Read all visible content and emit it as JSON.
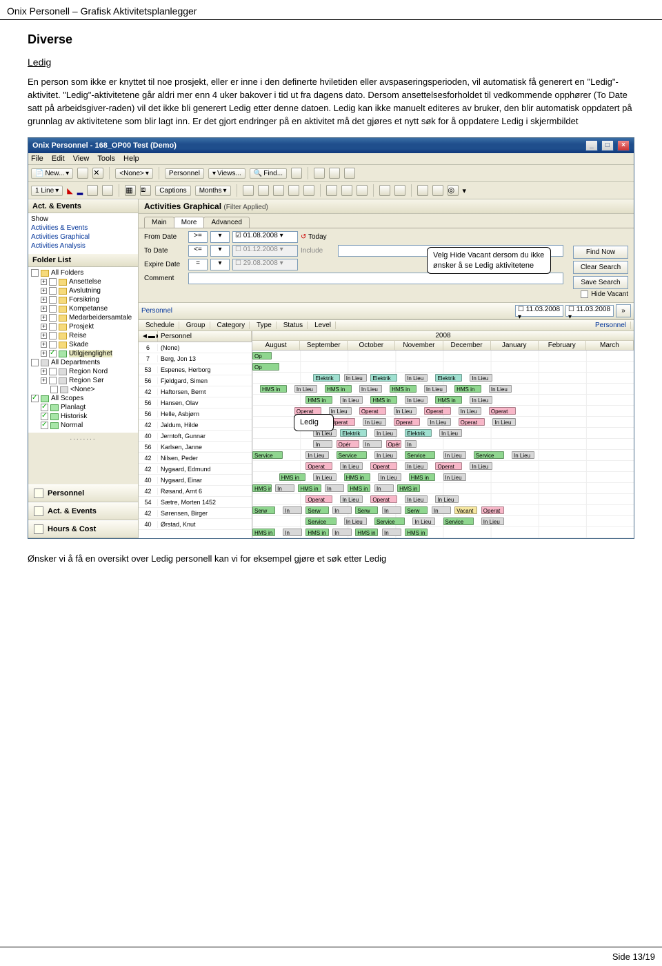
{
  "page": {
    "header": "Onix Personell – Grafisk Aktivitetsplanlegger",
    "footer": "Side 13/19",
    "section_title": "Diverse",
    "subheading": "Ledig",
    "para1": "En person som ikke er knyttet til noe prosjekt, eller er inne i den definerte hviletiden eller avspaseringsperioden, vil automatisk få generert en \"Ledig\"-aktivitet. \"Ledig\"-aktivitetene går aldri mer enn 4 uker bakover i tid ut fra dagens dato. Dersom ansettelsesforholdet til vedkommende opphører (To Date satt på arbeidsgiver-raden) vil det ikke bli generert Ledig etter denne datoen. Ledig kan ikke manuelt editeres av bruker, den blir automatisk oppdatert på grunnlag av aktivitetene som blir lagt inn. Er det gjort endringer på en aktivitet må det gjøres et nytt søk for å oppdatere Ledig i skjermbildet",
    "para_after": "Ønsker vi å få en oversikt over Ledig personell kan vi for eksempel gjøre et søk etter Ledig"
  },
  "app": {
    "title": "Onix Personnel - 168_OP00 Test (Demo)",
    "menu": {
      "file": "File",
      "edit": "Edit",
      "view": "View",
      "tools": "Tools",
      "help": "Help"
    },
    "toolbar": {
      "new": "New...",
      "none": "<None>",
      "personnel": "Personnel",
      "views": "Views...",
      "find": "Find..."
    },
    "toolbar2": {
      "line": "1 Line",
      "captions": "Captions",
      "months": "Months"
    },
    "actevents": {
      "header": "Act. & Events",
      "show": "Show",
      "items": [
        "Activities & Events",
        "Activities Graphical",
        "Activities Analysis"
      ]
    },
    "folderlist": {
      "header": "Folder List",
      "all_folders": "All Folders",
      "folders": [
        "Ansettelse",
        "Avslutning",
        "Forsikring",
        "Kompetanse",
        "Medarbeidersamtale",
        "Prosjekt",
        "Reise",
        "Skade",
        "Utilgjenglighet"
      ],
      "all_departments": "All Departments",
      "dept": [
        "Region Nord",
        "Region Sør",
        "<None>"
      ],
      "all_scopes": "All Scopes",
      "scopes": [
        "Planlagt",
        "Historisk",
        "Normal"
      ]
    },
    "nav": {
      "personnel": "Personnel",
      "actevents": "Act. & Events",
      "hourscost": "Hours & Cost"
    },
    "main": {
      "title": "Activities Graphical",
      "filter_applied": "(Filter Applied)",
      "tabs": {
        "main": "Main",
        "more": "More",
        "advanced": "Advanced"
      },
      "filters": {
        "from_date": "From Date",
        "from_op": ">=",
        "from_val": "01.08.2008",
        "to_date": "To Date",
        "to_op": "<=",
        "to_val": "01.12.2008",
        "expire_date": "Expire Date",
        "exp_op": "=",
        "exp_val": "29.08.2008",
        "comment": "Comment",
        "today": "Today",
        "include": "Include"
      },
      "buttons": {
        "find_now": "Find Now",
        "clear": "Clear Search",
        "save": "Save Search"
      },
      "hide_vacant": "Hide Vacant",
      "personnel_label": "Personnel",
      "date_nav": {
        "d1": "11.03.2008",
        "d2": "11.03.2008",
        "next": "»"
      },
      "grid_hdr": [
        "Schedule",
        "Group",
        "Category",
        "Type",
        "Status",
        "Level",
        "Personnel"
      ],
      "year": "2008",
      "months": [
        "August",
        "September",
        "October",
        "November",
        "December",
        "January",
        "February",
        "March"
      ],
      "person_col": "Personnel",
      "nav_arrows": "◄▬►",
      "rows": [
        {
          "s": "6",
          "n": "(None)"
        },
        {
          "s": "7",
          "n": "Berg, Jon 13"
        },
        {
          "s": "53",
          "n": "Espenes, Herborg"
        },
        {
          "s": "56",
          "n": "Fjeldgard, Simen"
        },
        {
          "s": "42",
          "n": "Haftorsen, Bernt"
        },
        {
          "s": "56",
          "n": "Hansen, Olav"
        },
        {
          "s": "56",
          "n": "Helle, Asbjørn"
        },
        {
          "s": "42",
          "n": "Jaldum, Hilde"
        },
        {
          "s": "40",
          "n": "Jerntoft, Gunnar"
        },
        {
          "s": "56",
          "n": "Karlsen, Janne"
        },
        {
          "s": "42",
          "n": "Nilsen, Peder"
        },
        {
          "s": "42",
          "n": "Nygaard, Edmund"
        },
        {
          "s": "40",
          "n": "Nygaard, Einar"
        },
        {
          "s": "42",
          "n": "Røsand, Arnt 6"
        },
        {
          "s": "54",
          "n": "Sætre, Morten 1452"
        },
        {
          "s": "42",
          "n": "Sørensen, Birger"
        },
        {
          "s": "40",
          "n": "Ørstad, Knut"
        }
      ],
      "acts": {
        "op": "Op",
        "elek": "Elektrik",
        "inlieu": "In Lieu",
        "hms": "HMS in",
        "oper": "Operat",
        "serv": "Service",
        "vac": "Vacant",
        "oper2": "Opér",
        "in": "In",
        "serw": "Serw"
      }
    }
  },
  "callouts": {
    "hide": "Velg Hide Vacant dersom du ikke ønsker å se Ledig aktivitetene",
    "ledig": "Ledig"
  },
  "colors": {
    "title_grad_a": "#3a6ea5",
    "accent_link": "#003399"
  }
}
